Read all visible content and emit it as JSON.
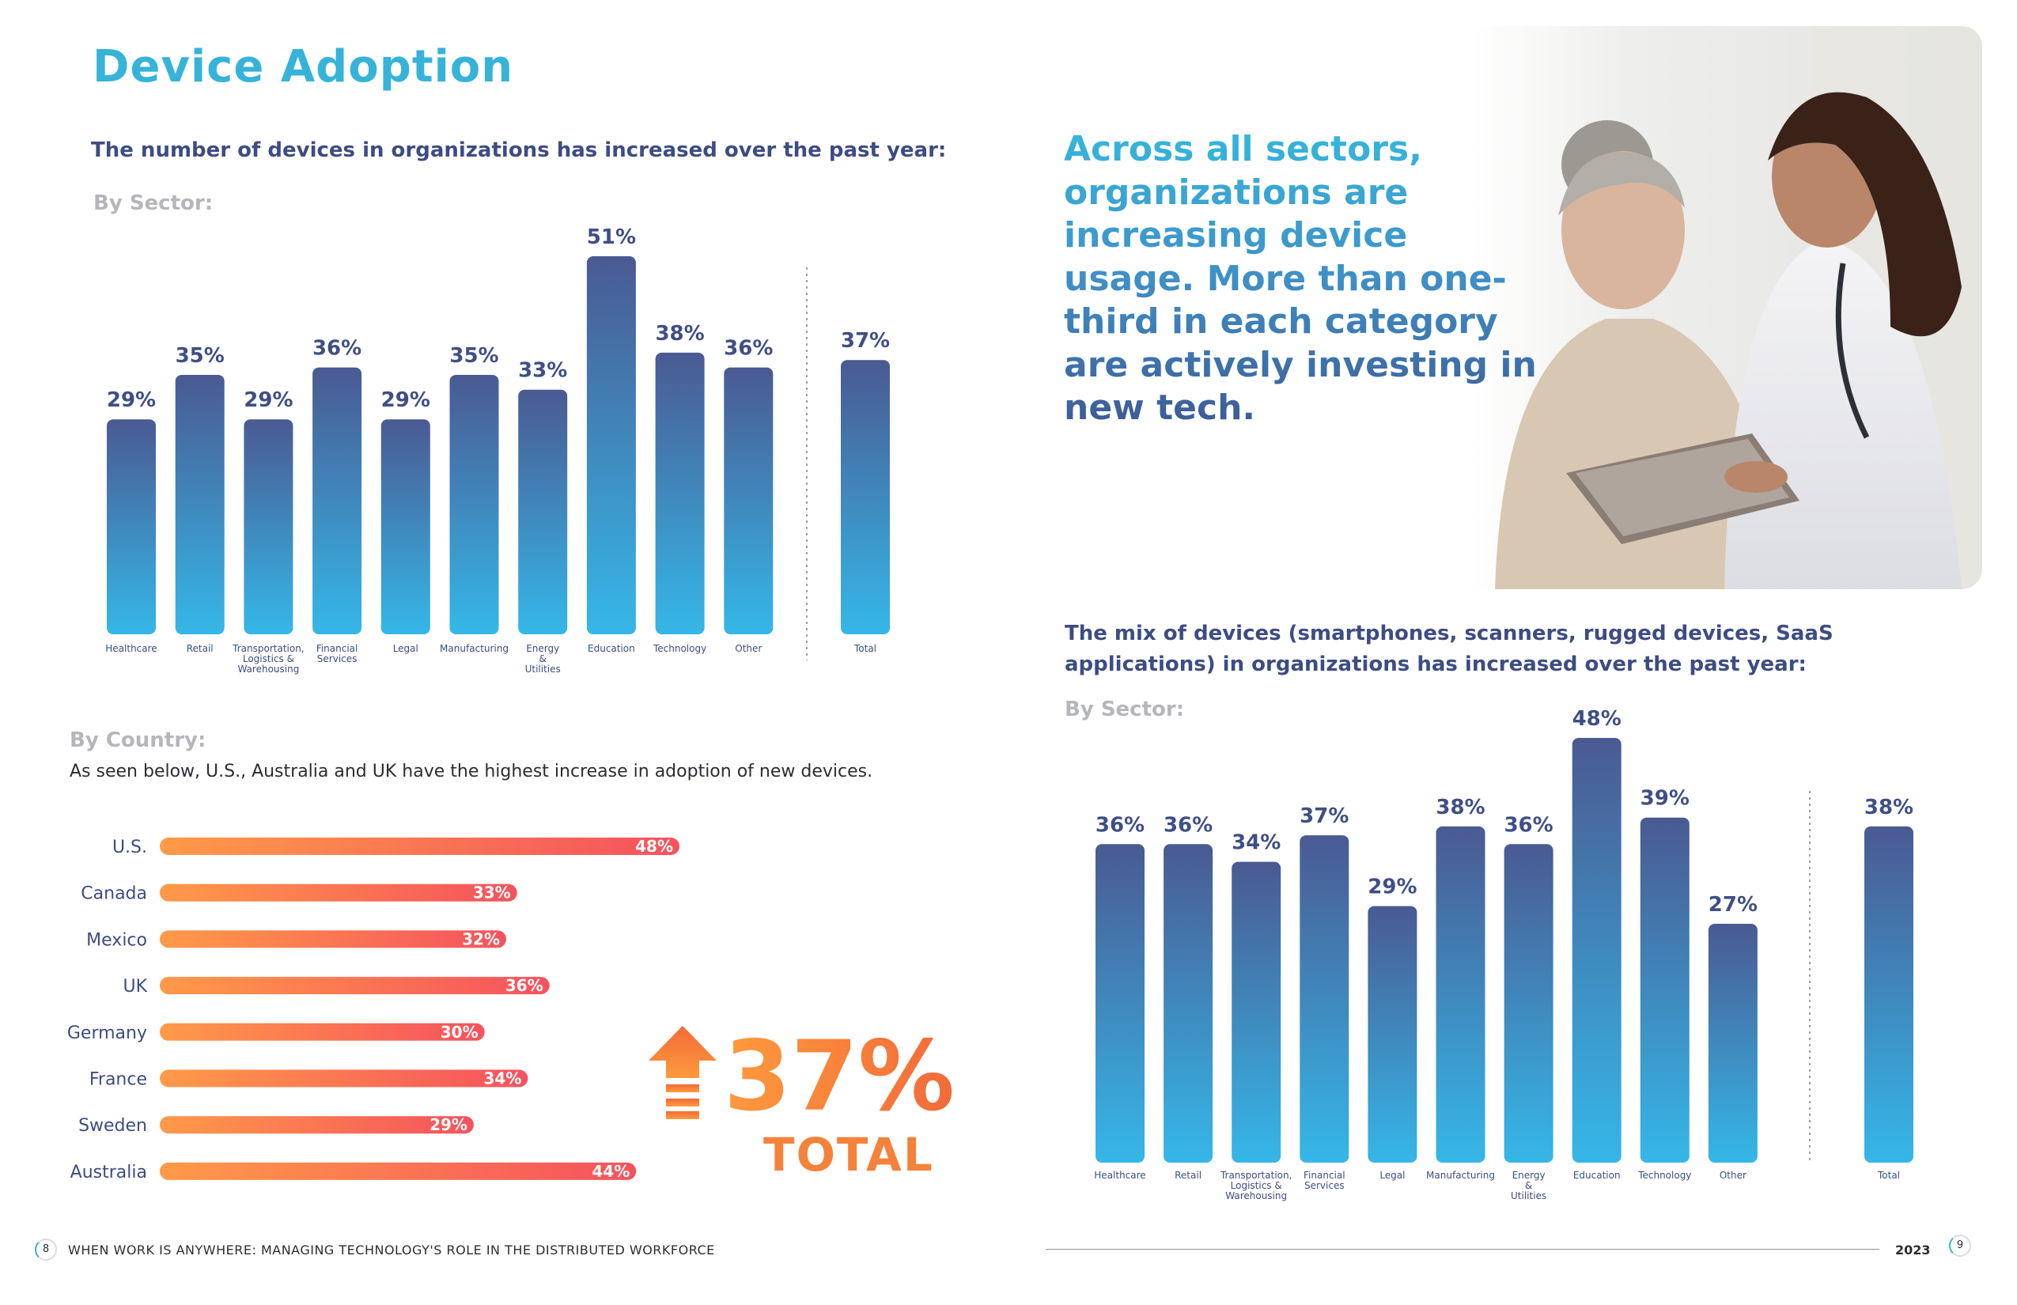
{
  "page_title": "Device Adoption",
  "left": {
    "heading": "The number of devices in organizations has increased over the past year:",
    "by_sector_label": "By Sector:",
    "by_country_label": "By Country:",
    "country_caption": "As seen below, U.S., Australia and UK have the highest increase in adoption of new devices.",
    "total_number": "37%",
    "total_word": "TOTAL"
  },
  "right": {
    "quote": "Across all sectors, organizations are increasing device usage. More than one-third in each category are actively investing in new tech.",
    "heading": "The mix of devices (smartphones, scanners, rugged devices, SaaS applications) in organizations has increased over the past year:",
    "by_sector_label": "By Sector:"
  },
  "footer": {
    "left_page": "8",
    "left_text": "WHEN WORK IS ANYWHERE: MANAGING TECHNOLOGY'S ROLE IN THE DISTRIBUTED WORKFORCE",
    "year": "2023",
    "right_page": "9"
  },
  "colors": {
    "bar_top": "#4a5a92",
    "bar_bottom": "#35b7e8",
    "hbar_start": "#ff9a48",
    "hbar_end": "#f5525e",
    "accent": "#36b3d8"
  },
  "chart_data": [
    {
      "type": "bar",
      "categories": [
        [
          "Healthcare"
        ],
        [
          "Retail"
        ],
        [
          "Transportation,",
          "Logistics &",
          "Warehousing"
        ],
        [
          "Financial",
          "Services"
        ],
        [
          "Legal"
        ],
        [
          "Manufacturing"
        ],
        [
          "Energy",
          "&",
          "Utilities"
        ],
        [
          "Education"
        ],
        [
          "Technology"
        ],
        [
          "Other"
        ],
        [
          "Total"
        ]
      ],
      "values": [
        29,
        35,
        29,
        36,
        29,
        35,
        33,
        51,
        38,
        36,
        37
      ],
      "value_labels": [
        "29%",
        "35%",
        "29%",
        "36%",
        "29%",
        "35%",
        "33%",
        "51%",
        "38%",
        "36%",
        "37%"
      ],
      "separator_before_last": true,
      "ylim": [
        0,
        51
      ]
    },
    {
      "type": "bar",
      "orientation": "horizontal",
      "categories": [
        "U.S.",
        "Canada",
        "Mexico",
        "UK",
        "Germany",
        "France",
        "Sweden",
        "Australia"
      ],
      "values": [
        48,
        33,
        32,
        36,
        30,
        34,
        29,
        44
      ],
      "value_labels": [
        "48%",
        "33%",
        "32%",
        "36%",
        "30%",
        "34%",
        "29%",
        "44%"
      ],
      "xlim": [
        0,
        48
      ]
    },
    {
      "type": "bar",
      "categories": [
        [
          "Healthcare"
        ],
        [
          "Retail"
        ],
        [
          "Transportation,",
          "Logistics &",
          "Warehousing"
        ],
        [
          "Financial",
          "Services"
        ],
        [
          "Legal"
        ],
        [
          "Manufacturing"
        ],
        [
          "Energy",
          "&",
          "Utilities"
        ],
        [
          "Education"
        ],
        [
          "Technology"
        ],
        [
          "Other"
        ],
        [
          "Total"
        ]
      ],
      "values": [
        36,
        36,
        34,
        37,
        29,
        38,
        36,
        48,
        39,
        27,
        38
      ],
      "value_labels": [
        "36%",
        "36%",
        "34%",
        "37%",
        "29%",
        "38%",
        "36%",
        "48%",
        "39%",
        "27%",
        "38%"
      ],
      "separator_before_last": true,
      "ylim": [
        0,
        48
      ]
    }
  ]
}
